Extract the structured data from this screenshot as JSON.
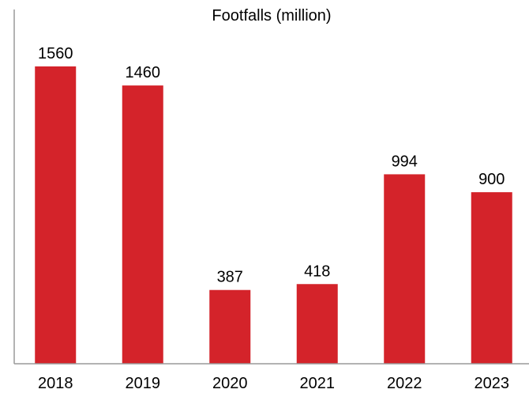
{
  "chart_data": {
    "type": "bar",
    "title": "Footfalls (million)",
    "xlabel": "",
    "ylabel": "",
    "categories": [
      "2018",
      "2019",
      "2020",
      "2021",
      "2022",
      "2023"
    ],
    "values": [
      1560,
      1460,
      387,
      418,
      994,
      900
    ],
    "data_labels": [
      "1560",
      "1460",
      "387",
      "418",
      "994",
      "900"
    ],
    "ylim": [
      0,
      1700
    ],
    "grid": false,
    "legend": "none",
    "bar_color": "#d4232a",
    "axis_color": "#9a9a9a"
  }
}
